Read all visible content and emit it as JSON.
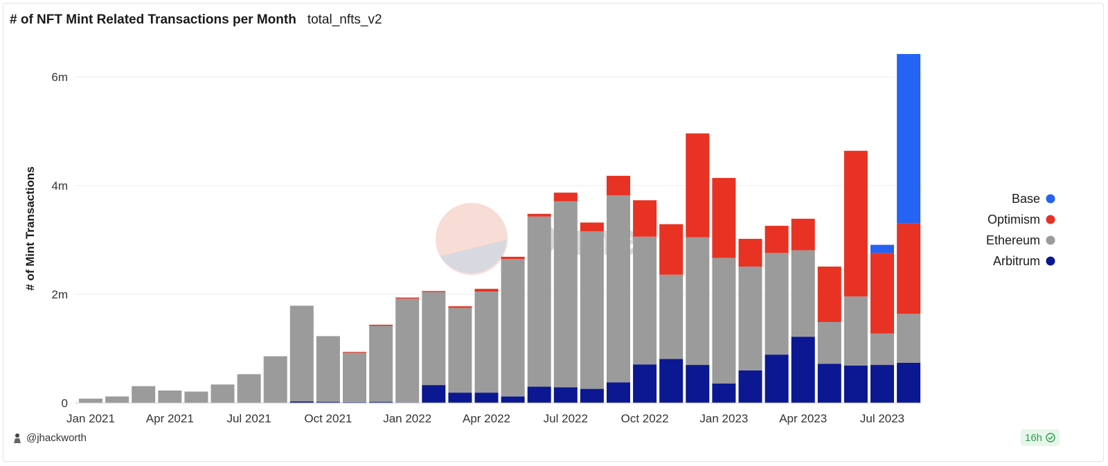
{
  "header": {
    "title": "# of NFT Mint Related Transactions per Month",
    "query_name": "total_nfts_v2"
  },
  "footer": {
    "user": "@jhackworth",
    "freshness": "16h"
  },
  "watermark": "Dune",
  "colors": {
    "Base": "#2563f5",
    "Optimism": "#e83223",
    "Ethereum": "#9b9b9b",
    "Arbitrum": "#0b1892",
    "grid": "#ececec",
    "axis": "#555555"
  },
  "chart_data": {
    "type": "bar",
    "stacked": true,
    "title": "# of NFT Mint Related Transactions per Month",
    "xlabel": "",
    "ylabel": "# of Mint Transactions",
    "ylim": [
      0,
      6600000
    ],
    "yticks": [
      0,
      2000000,
      4000000,
      6000000
    ],
    "ytick_labels": [
      "0",
      "2m",
      "4m",
      "6m"
    ],
    "grid": true,
    "legend_position": "right",
    "legend": [
      "Base",
      "Optimism",
      "Ethereum",
      "Arbitrum"
    ],
    "categories": [
      "2021-01",
      "2021-02",
      "2021-03",
      "2021-04",
      "2021-05",
      "2021-06",
      "2021-07",
      "2021-08",
      "2021-09",
      "2021-10",
      "2021-11",
      "2021-12",
      "2022-01",
      "2022-02",
      "2022-03",
      "2022-04",
      "2022-05",
      "2022-06",
      "2022-07",
      "2022-08",
      "2022-09",
      "2022-10",
      "2022-11",
      "2022-12",
      "2023-01",
      "2023-02",
      "2023-03",
      "2023-04",
      "2023-05",
      "2023-06",
      "2023-07",
      "2023-08"
    ],
    "x_tick_labels": [
      {
        "index": 0,
        "label": "Jan 2021"
      },
      {
        "index": 3,
        "label": "Apr 2021"
      },
      {
        "index": 6,
        "label": "Jul 2021"
      },
      {
        "index": 9,
        "label": "Oct 2021"
      },
      {
        "index": 12,
        "label": "Jan 2022"
      },
      {
        "index": 15,
        "label": "Apr 2022"
      },
      {
        "index": 18,
        "label": "Jul 2022"
      },
      {
        "index": 21,
        "label": "Oct 2022"
      },
      {
        "index": 24,
        "label": "Jan 2023"
      },
      {
        "index": 27,
        "label": "Apr 2023"
      },
      {
        "index": 30,
        "label": "Jul 2023"
      }
    ],
    "series": [
      {
        "name": "Arbitrum",
        "values": [
          0,
          0,
          0,
          0,
          0,
          0,
          0,
          0,
          30000,
          20000,
          15000,
          20000,
          10000,
          330000,
          190000,
          190000,
          120000,
          300000,
          290000,
          260000,
          380000,
          710000,
          810000,
          700000,
          360000,
          600000,
          890000,
          1220000,
          720000,
          690000,
          700000,
          740000
        ]
      },
      {
        "name": "Ethereum",
        "values": [
          80000,
          120000,
          310000,
          230000,
          210000,
          340000,
          530000,
          860000,
          1760000,
          1210000,
          910000,
          1400000,
          1910000,
          1710000,
          1560000,
          1860000,
          2530000,
          3130000,
          3420000,
          2900000,
          3440000,
          2350000,
          1550000,
          2350000,
          2310000,
          1910000,
          1870000,
          1590000,
          770000,
          1270000,
          580000,
          900000
        ]
      },
      {
        "name": "Optimism",
        "values": [
          0,
          0,
          0,
          0,
          0,
          0,
          0,
          0,
          0,
          0,
          15000,
          20000,
          20000,
          20000,
          30000,
          50000,
          40000,
          50000,
          160000,
          160000,
          360000,
          670000,
          930000,
          1910000,
          1470000,
          510000,
          500000,
          580000,
          1020000,
          2680000,
          1480000,
          1670000
        ]
      },
      {
        "name": "Base",
        "values": [
          0,
          0,
          0,
          0,
          0,
          0,
          0,
          0,
          0,
          0,
          0,
          0,
          0,
          0,
          0,
          0,
          0,
          0,
          0,
          0,
          0,
          0,
          0,
          0,
          0,
          0,
          0,
          0,
          0,
          0,
          150000,
          3110000
        ]
      }
    ]
  }
}
